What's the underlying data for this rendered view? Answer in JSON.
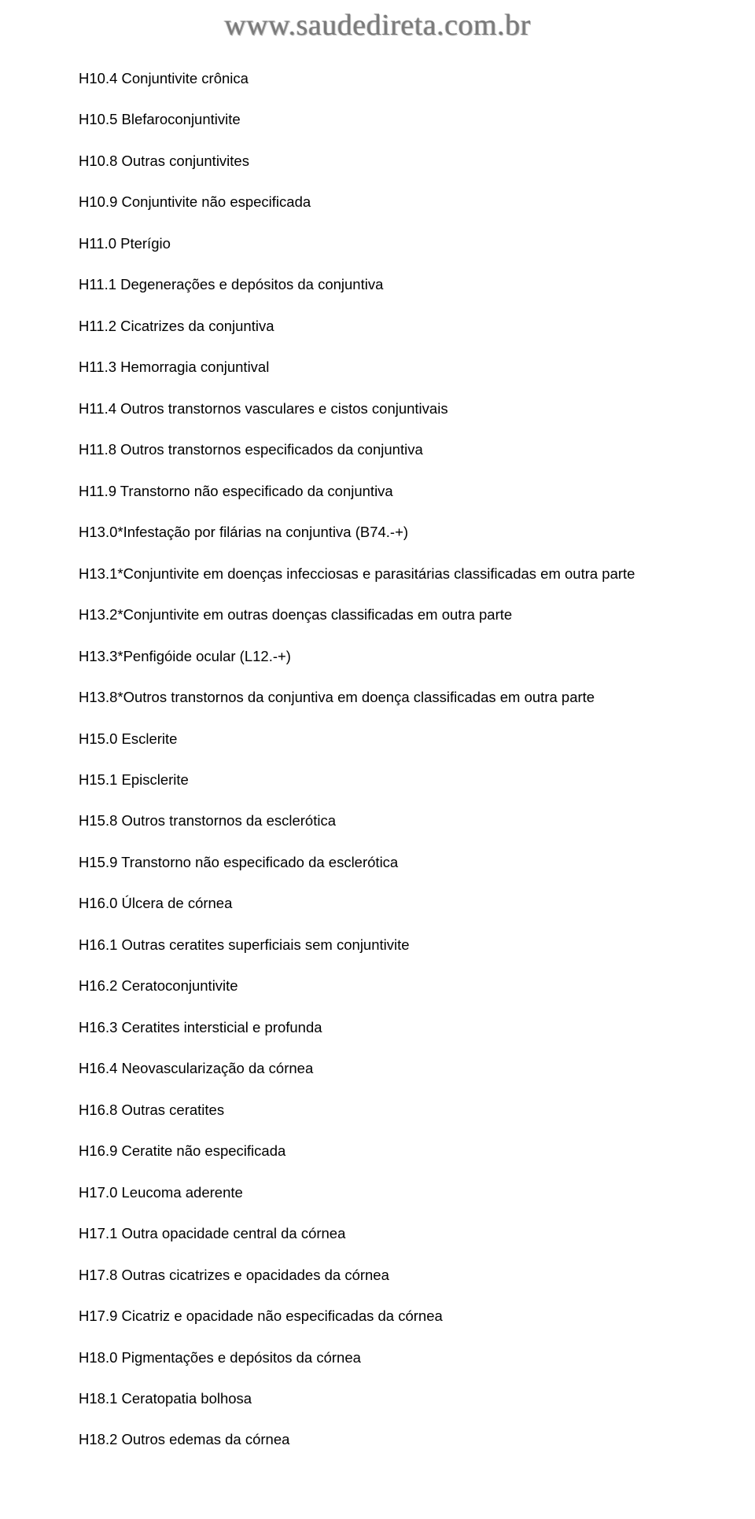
{
  "watermark": "www.saudedireta.com.br",
  "entries": [
    "H10.4 Conjuntivite crônica",
    "H10.5 Blefaroconjuntivite",
    "H10.8 Outras conjuntivites",
    "H10.9 Conjuntivite não especificada",
    "H11.0 Pterígio",
    "H11.1 Degenerações e depósitos da conjuntiva",
    "H11.2 Cicatrizes da conjuntiva",
    "H11.3 Hemorragia conjuntival",
    "H11.4 Outros transtornos vasculares e cistos conjuntivais",
    "H11.8 Outros transtornos especificados da conjuntiva",
    "H11.9 Transtorno não especificado da conjuntiva",
    "H13.0*Infestação por filárias na conjuntiva (B74.-+)",
    "H13.1*Conjuntivite em doenças infecciosas e parasitárias classificadas em outra parte",
    "H13.2*Conjuntivite em outras doenças classificadas em outra parte",
    "H13.3*Penfigóide ocular (L12.-+)",
    "H13.8*Outros transtornos da conjuntiva em doença classificadas em outra parte",
    "H15.0 Esclerite",
    "H15.1 Episclerite",
    "H15.8 Outros transtornos da esclerótica",
    "H15.9 Transtorno não especificado da esclerótica",
    "H16.0 Úlcera de córnea",
    "H16.1 Outras ceratites superficiais sem conjuntivite",
    "H16.2 Ceratoconjuntivite",
    "H16.3 Ceratites intersticial e profunda",
    "H16.4 Neovascularização da córnea",
    "H16.8 Outras ceratites",
    "H16.9 Ceratite não especificada",
    "H17.0 Leucoma aderente",
    "H17.1 Outra opacidade central da córnea",
    "H17.8 Outras cicatrizes e opacidades da córnea",
    "H17.9 Cicatriz e opacidade não especificadas da córnea",
    "H18.0 Pigmentações e depósitos da córnea",
    "H18.1 Ceratopatia bolhosa",
    "H18.2 Outros edemas da córnea"
  ]
}
